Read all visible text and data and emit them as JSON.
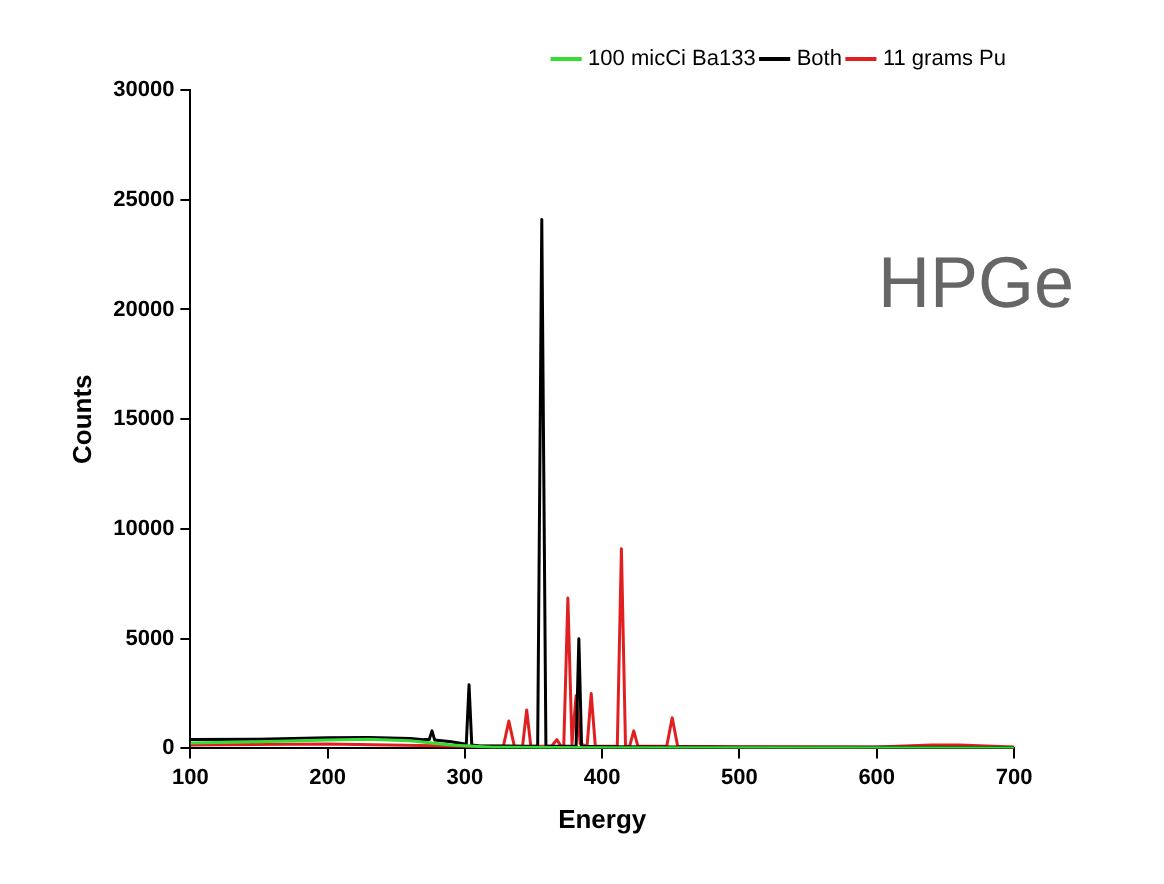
{
  "chart_data": {
    "type": "line",
    "xlabel": "Energy",
    "ylabel": "Counts",
    "annotations": [
      "HPGe"
    ],
    "xlim": [
      100,
      700
    ],
    "ylim": [
      0,
      30000
    ],
    "xticks": [
      100,
      200,
      300,
      400,
      500,
      600,
      700
    ],
    "yticks": [
      0,
      5000,
      10000,
      15000,
      20000,
      25000,
      30000
    ],
    "grid": false,
    "legend": "top right",
    "series": [
      {
        "name": "100 micCi Ba133",
        "color": "#33dd33",
        "x": [
          100,
          150,
          200,
          230,
          260,
          290,
          320,
          400,
          700
        ],
        "values": [
          250,
          300,
          380,
          420,
          350,
          150,
          50,
          30,
          20
        ]
      },
      {
        "name": "Both",
        "color": "#000000",
        "x": [
          100,
          150,
          200,
          230,
          260,
          270,
          274,
          276,
          278,
          290,
          300,
          301,
          303,
          305,
          310,
          340,
          353,
          356,
          359,
          370,
          381,
          383,
          385,
          400,
          450,
          500,
          600,
          700
        ],
        "values": [
          400,
          420,
          480,
          500,
          450,
          400,
          400,
          800,
          380,
          300,
          200,
          200,
          2900,
          150,
          120,
          100,
          100,
          24100,
          100,
          100,
          100,
          5000,
          100,
          80,
          60,
          50,
          50,
          40
        ]
      },
      {
        "name": "11 grams Pu",
        "color": "#e02020",
        "x": [
          100,
          200,
          300,
          328,
          332,
          336,
          342,
          345,
          348,
          363,
          367,
          370,
          372,
          375,
          378,
          381,
          384,
          389,
          392,
          395,
          411,
          414,
          417,
          420,
          423,
          426,
          447,
          451,
          455,
          500,
          600,
          640,
          650,
          660,
          700
        ],
        "values": [
          150,
          200,
          100,
          100,
          1250,
          100,
          100,
          1750,
          100,
          100,
          400,
          100,
          100,
          6850,
          200,
          2400,
          200,
          100,
          2500,
          100,
          100,
          9100,
          100,
          100,
          800,
          100,
          100,
          1400,
          100,
          80,
          60,
          150,
          150,
          150,
          60
        ]
      }
    ]
  }
}
